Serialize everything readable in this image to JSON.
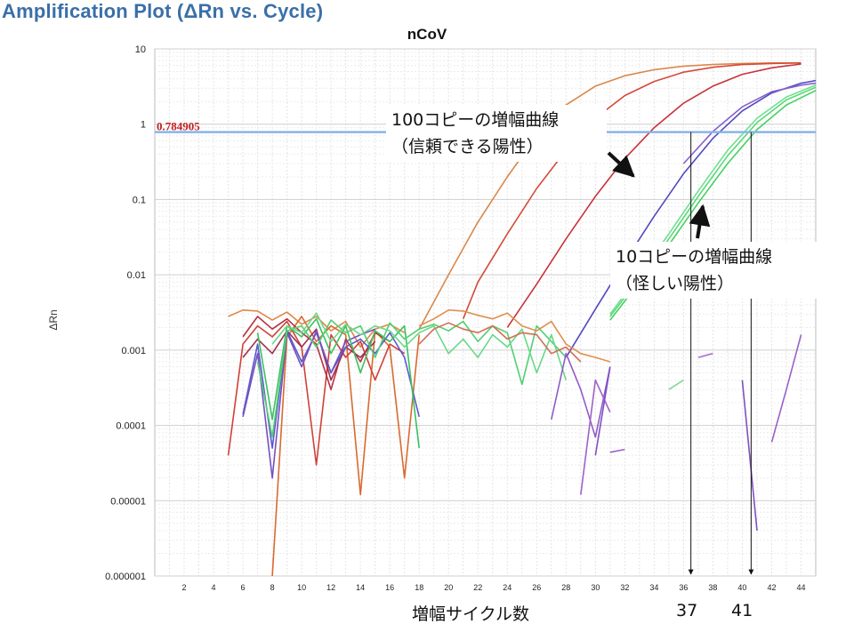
{
  "page_title": "Amplification Plot (ΔRn vs. Cycle)",
  "threshold_label": "0.784905",
  "callout_100": {
    "line1": "100コピーの増幅曲線",
    "line2": "（信頼できる陽性）"
  },
  "callout_10": {
    "line1": "10コピーの増幅曲線",
    "line2": "（怪しい陽性）"
  },
  "x_caption": "増幅サイクル数",
  "ct_labels": [
    "37",
    "41"
  ],
  "chart_data": {
    "type": "line",
    "title": "nCoV",
    "xlabel": "",
    "ylabel": "ΔRn",
    "yscale": "log",
    "xlim": [
      0,
      45
    ],
    "ylim": [
      1e-06,
      10
    ],
    "x_ticks": [
      2,
      4,
      6,
      8,
      10,
      12,
      14,
      16,
      18,
      20,
      22,
      24,
      26,
      28,
      30,
      32,
      34,
      36,
      38,
      40,
      42,
      44
    ],
    "y_ticks": [
      {
        "value": 10,
        "label": "10"
      },
      {
        "value": 1,
        "label": "1"
      },
      {
        "value": 0.1,
        "label": "0.1"
      },
      {
        "value": 0.01,
        "label": "0.01"
      },
      {
        "value": 0.001,
        "label": "0.001"
      },
      {
        "value": 0.0001,
        "label": "0.0001"
      },
      {
        "value": 1e-05,
        "label": "0.00001"
      },
      {
        "value": 1e-06,
        "label": "0.000001"
      }
    ],
    "threshold": 0.784905,
    "threshold_color": "#8ab4e8",
    "grid": true,
    "ct_markers": [
      36.5,
      40.6
    ],
    "series": [
      {
        "color": "#d9884a",
        "points": [
          [
            18,
            0.0019
          ],
          [
            20,
            0.01
          ],
          [
            22,
            0.05
          ],
          [
            24,
            0.2
          ],
          [
            26,
            0.7
          ],
          [
            28,
            1.8
          ],
          [
            30,
            3.2
          ],
          [
            32,
            4.4
          ],
          [
            34,
            5.3
          ],
          [
            36,
            5.9
          ],
          [
            38,
            6.2
          ],
          [
            40,
            6.4
          ],
          [
            42,
            6.5
          ],
          [
            44,
            6.5
          ]
        ]
      },
      {
        "color": "#d44a3a",
        "points": [
          [
            21,
            0.0026
          ],
          [
            22,
            0.008
          ],
          [
            24,
            0.035
          ],
          [
            26,
            0.14
          ],
          [
            28,
            0.45
          ],
          [
            30,
            1.2
          ],
          [
            32,
            2.4
          ],
          [
            34,
            3.7
          ],
          [
            36,
            4.9
          ],
          [
            38,
            5.7
          ],
          [
            40,
            6.2
          ],
          [
            42,
            6.4
          ],
          [
            44,
            6.5
          ]
        ]
      },
      {
        "color": "#c8323a",
        "points": [
          [
            24,
            0.002
          ],
          [
            26,
            0.0075
          ],
          [
            28,
            0.03
          ],
          [
            30,
            0.11
          ],
          [
            32,
            0.35
          ],
          [
            34,
            0.9
          ],
          [
            36,
            1.9
          ],
          [
            38,
            3.2
          ],
          [
            40,
            4.6
          ],
          [
            42,
            5.6
          ],
          [
            44,
            6.3
          ]
        ]
      },
      {
        "color": "#5048c0",
        "points": [
          [
            28,
            0.0008
          ],
          [
            30,
            0.0035
          ],
          [
            32,
            0.015
          ],
          [
            34,
            0.06
          ],
          [
            36,
            0.22
          ],
          [
            38,
            0.65
          ],
          [
            40,
            1.5
          ],
          [
            42,
            2.6
          ],
          [
            44,
            3.5
          ],
          [
            45,
            3.8
          ]
        ]
      },
      {
        "color": "#8860c8",
        "points": [
          [
            36,
            0.3
          ],
          [
            38,
            0.8
          ],
          [
            40,
            1.7
          ],
          [
            42,
            2.7
          ],
          [
            44,
            3.3
          ],
          [
            45,
            3.5
          ]
        ]
      },
      {
        "color": "#46d060",
        "points": [
          [
            31,
            0.0025
          ],
          [
            33,
            0.008
          ],
          [
            35,
            0.025
          ],
          [
            37,
            0.09
          ],
          [
            39,
            0.3
          ],
          [
            41,
            0.85
          ],
          [
            43,
            1.8
          ],
          [
            45,
            2.8
          ]
        ]
      },
      {
        "color": "#5ad878",
        "points": [
          [
            31,
            0.0028
          ],
          [
            33,
            0.009
          ],
          [
            35,
            0.03
          ],
          [
            37,
            0.11
          ],
          [
            39,
            0.38
          ],
          [
            41,
            1.05
          ],
          [
            43,
            2.1
          ],
          [
            45,
            3.1
          ]
        ]
      },
      {
        "color": "#70e090",
        "points": [
          [
            31,
            0.003
          ],
          [
            33,
            0.01
          ],
          [
            35,
            0.035
          ],
          [
            37,
            0.13
          ],
          [
            39,
            0.45
          ],
          [
            41,
            1.2
          ],
          [
            43,
            2.3
          ],
          [
            45,
            3.3
          ]
        ]
      },
      {
        "color": "#e08848",
        "points": [
          [
            5,
            0.0028
          ],
          [
            6,
            0.0034
          ],
          [
            7,
            0.0033
          ],
          [
            8,
            0.0025
          ],
          [
            9,
            0.0032
          ],
          [
            10,
            0.0022
          ],
          [
            11,
            0.0028
          ],
          [
            12,
            0.0018
          ],
          [
            13,
            0.0024
          ],
          [
            14,
            0.0011
          ],
          [
            15,
            0.0019
          ],
          [
            16,
            0.0022
          ],
          [
            17,
            0.0017
          ]
        ]
      },
      {
        "color": "#d86a30",
        "points": [
          [
            8,
            1e-06
          ],
          [
            9,
            0.0015
          ],
          [
            10,
            0.0028
          ],
          [
            11,
            0.0013
          ],
          [
            12,
            0.0021
          ],
          [
            13,
            0.0016
          ],
          [
            14,
            1.2e-05
          ],
          [
            15,
            0.0018
          ],
          [
            16,
            0.0011
          ],
          [
            17,
            2e-05
          ],
          [
            18,
            0.0016
          ]
        ]
      },
      {
        "color": "#d04038",
        "points": [
          [
            5,
            4e-05
          ],
          [
            6,
            0.0012
          ],
          [
            7,
            0.0021
          ],
          [
            8,
            0.0015
          ],
          [
            9,
            0.0024
          ],
          [
            10,
            0.0011
          ],
          [
            11,
            3e-05
          ],
          [
            12,
            0.0016
          ],
          [
            13,
            0.0008
          ],
          [
            14,
            0.0013
          ],
          [
            15,
            0.0004
          ],
          [
            16,
            0.0012
          ],
          [
            17,
            0.0009
          ]
        ]
      },
      {
        "color": "#b83040",
        "points": [
          [
            6,
            0.0015
          ],
          [
            7,
            0.0028
          ],
          [
            8,
            0.0019
          ],
          [
            9,
            0.0026
          ],
          [
            10,
            0.0017
          ],
          [
            11,
            0.0012
          ],
          [
            12,
            0.0003
          ],
          [
            13,
            0.0014
          ],
          [
            14,
            0.0007
          ],
          [
            15,
            0.0017
          ],
          [
            16,
            0.0013
          ]
        ]
      },
      {
        "color": "#9e3050",
        "points": [
          [
            6,
            0.0008
          ],
          [
            7,
            0.0014
          ],
          [
            8,
            0.0009
          ],
          [
            9,
            0.0018
          ],
          [
            10,
            0.0011
          ],
          [
            11,
            0.0019
          ],
          [
            12,
            0.0004
          ],
          [
            13,
            0.0011
          ],
          [
            14,
            0.0008
          ],
          [
            15,
            0.0013
          ]
        ]
      },
      {
        "color": "#5a5ad0",
        "points": [
          [
            6,
            0.00014
          ],
          [
            7,
            0.0012
          ],
          [
            8,
            5e-05
          ],
          [
            9,
            0.0018
          ],
          [
            10,
            0.0007
          ],
          [
            11,
            0.0017
          ],
          [
            12,
            0.0005
          ],
          [
            13,
            0.0011
          ],
          [
            14,
            0.0014
          ],
          [
            15,
            0.0009
          ],
          [
            16,
            0.0017
          ],
          [
            17,
            0.0008
          ],
          [
            18,
            0.00013
          ]
        ]
      },
      {
        "color": "#7650c0",
        "points": [
          [
            6,
            0.00013
          ],
          [
            7,
            0.0009
          ],
          [
            8,
            2e-05
          ],
          [
            9,
            0.0017
          ],
          [
            10,
            0.0006
          ],
          [
            11,
            0.0018
          ],
          [
            12,
            0.0005
          ],
          [
            13,
            0.0013
          ],
          [
            14,
            0.0016
          ],
          [
            15,
            0.0019
          ]
        ]
      },
      {
        "color": "#3cc060",
        "points": [
          [
            7,
            0.0017
          ],
          [
            8,
            0.00012
          ],
          [
            9,
            0.0021
          ],
          [
            10,
            0.0015
          ],
          [
            11,
            0.0026
          ],
          [
            12,
            0.0009
          ],
          [
            13,
            0.0021
          ],
          [
            14,
            0.0005
          ],
          [
            15,
            0.0018
          ],
          [
            16,
            0.0013
          ],
          [
            17,
            0.0021
          ],
          [
            18,
            5e-05
          ]
        ]
      },
      {
        "color": "#50d070",
        "points": [
          [
            7,
            0.0007
          ],
          [
            8,
            7e-05
          ],
          [
            9,
            0.0018
          ],
          [
            10,
            0.0021
          ],
          [
            11,
            0.0011
          ],
          [
            12,
            0.0025
          ],
          [
            13,
            0.0017
          ],
          [
            14,
            0.0021
          ],
          [
            15,
            0.0008
          ],
          [
            16,
            0.0023
          ],
          [
            17,
            0.0014
          ],
          [
            18,
            0.0019
          ],
          [
            19,
            0.0022
          ],
          [
            20,
            0.0018
          ],
          [
            21,
            0.0024
          ],
          [
            22,
            0.0013
          ],
          [
            23,
            0.0021
          ],
          [
            24,
            0.0017
          ],
          [
            25,
            0.00035
          ],
          [
            26,
            0.0021
          ],
          [
            27,
            0.0013
          ],
          [
            28,
            0.0008
          ]
        ]
      },
      {
        "color": "#6ad888",
        "points": [
          [
            8,
            0.0012
          ],
          [
            9,
            0.0021
          ],
          [
            10,
            0.0017
          ],
          [
            11,
            0.0031
          ],
          [
            12,
            0.0013
          ],
          [
            13,
            0.0022
          ],
          [
            14,
            0.0016
          ],
          [
            15,
            0.0021
          ],
          [
            16,
            0.0018
          ],
          [
            17,
            0.0011
          ],
          [
            18,
            0.0017
          ],
          [
            19,
            0.0021
          ],
          [
            20,
            0.0009
          ],
          [
            21,
            0.0014
          ],
          [
            22,
            0.0008
          ],
          [
            23,
            0.0016
          ],
          [
            24,
            0.0011
          ],
          [
            25,
            0.0019
          ],
          [
            26,
            0.0005
          ],
          [
            27,
            0.0016
          ],
          [
            28,
            0.0004
          ]
        ]
      },
      {
        "color": "#e0904c",
        "points": [
          [
            18,
            0.0021
          ],
          [
            19,
            0.0026
          ],
          [
            20,
            0.0034
          ],
          [
            21,
            0.0033
          ],
          [
            22,
            0.0029
          ],
          [
            23,
            0.0026
          ],
          [
            24,
            0.0031
          ],
          [
            25,
            0.0021
          ],
          [
            26,
            0.0018
          ],
          [
            27,
            0.0024
          ],
          [
            28,
            0.0012
          ],
          [
            29,
            0.0009
          ],
          [
            30,
            0.0008
          ],
          [
            31,
            0.0007
          ]
        ]
      },
      {
        "color": "#d46c56",
        "points": [
          [
            18,
            0.0012
          ],
          [
            19,
            0.0019
          ],
          [
            20,
            0.0023
          ],
          [
            21,
            0.0019
          ],
          [
            22,
            0.0017
          ],
          [
            23,
            0.0021
          ],
          [
            24,
            0.0014
          ],
          [
            25,
            0.0017
          ],
          [
            26,
            0.0016
          ],
          [
            27,
            0.0009
          ],
          [
            28,
            0.0011
          ],
          [
            29,
            0.0007
          ]
        ]
      },
      {
        "color": "#8f5cc8",
        "points": [
          [
            27,
            0.00012
          ],
          [
            28,
            0.0009
          ],
          [
            29,
            0.0003
          ],
          [
            30,
            7e-05
          ],
          [
            31,
            0.0006
          ]
        ]
      },
      {
        "color": "#a060c8",
        "points": [
          [
            29,
            1.2e-05
          ],
          [
            30,
            0.0004
          ],
          [
            31,
            0.00015
          ]
        ]
      },
      {
        "color": "#7f50c0",
        "points": [
          [
            30,
            4e-05
          ],
          [
            31,
            0.0006
          ]
        ]
      },
      {
        "color": "#9860c8",
        "points": [
          [
            31,
            4.4e-05
          ],
          [
            32,
            4.8e-05
          ]
        ]
      },
      {
        "color": "#a870d0",
        "points": [
          [
            37,
            0.0008
          ],
          [
            38,
            0.0009
          ]
        ]
      },
      {
        "color": "#7ad898",
        "points": [
          [
            35,
            0.0003
          ],
          [
            36,
            0.0004
          ]
        ]
      },
      {
        "color": "#8050c0",
        "points": [
          [
            40,
            0.0004
          ],
          [
            41,
            4e-06
          ]
        ]
      },
      {
        "color": "#9a60c8",
        "points": [
          [
            42,
            6e-05
          ],
          [
            43,
            0.0003
          ],
          [
            44,
            0.0016
          ]
        ]
      }
    ]
  }
}
